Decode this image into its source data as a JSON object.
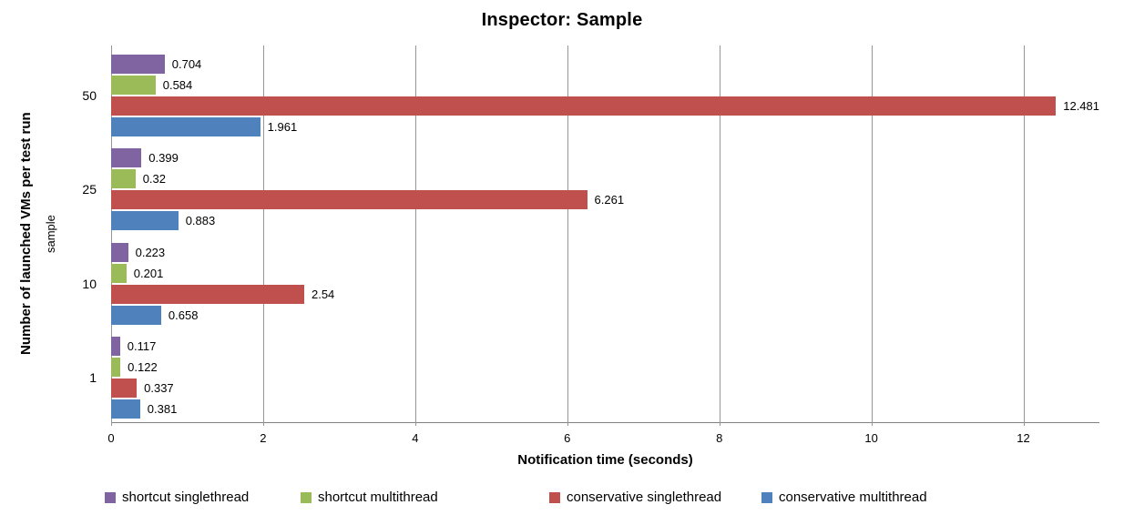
{
  "chart_data": {
    "type": "bar",
    "orientation": "horizontal",
    "title": "Inspector: Sample",
    "xlabel": "Notification time (seconds)",
    "ylabel": "Number of launched VMs per test run",
    "ylabel_secondary": "sample",
    "categories": [
      "50",
      "25",
      "10",
      "1"
    ],
    "series": [
      {
        "name": "shortcut singlethread",
        "color": "#8064A2",
        "values": [
          0.704,
          0.399,
          0.223,
          0.117
        ]
      },
      {
        "name": "shortcut multithread",
        "color": "#9BBB59",
        "values": [
          0.584,
          0.32,
          0.201,
          0.122
        ]
      },
      {
        "name": "conservative singlethread",
        "color": "#C0504D",
        "values": [
          12.481,
          6.261,
          2.54,
          0.337
        ]
      },
      {
        "name": "conservative multithread",
        "color": "#4F81BD",
        "values": [
          1.961,
          0.883,
          0.658,
          0.381
        ]
      }
    ],
    "xlim": [
      0,
      13
    ],
    "xticks": [
      0,
      2,
      4,
      6,
      8,
      10,
      12
    ],
    "grid": "vertical-major",
    "grid_color": "#969696",
    "axis_line_color": "#808080",
    "data_labels": true,
    "legend_position": "bottom"
  }
}
